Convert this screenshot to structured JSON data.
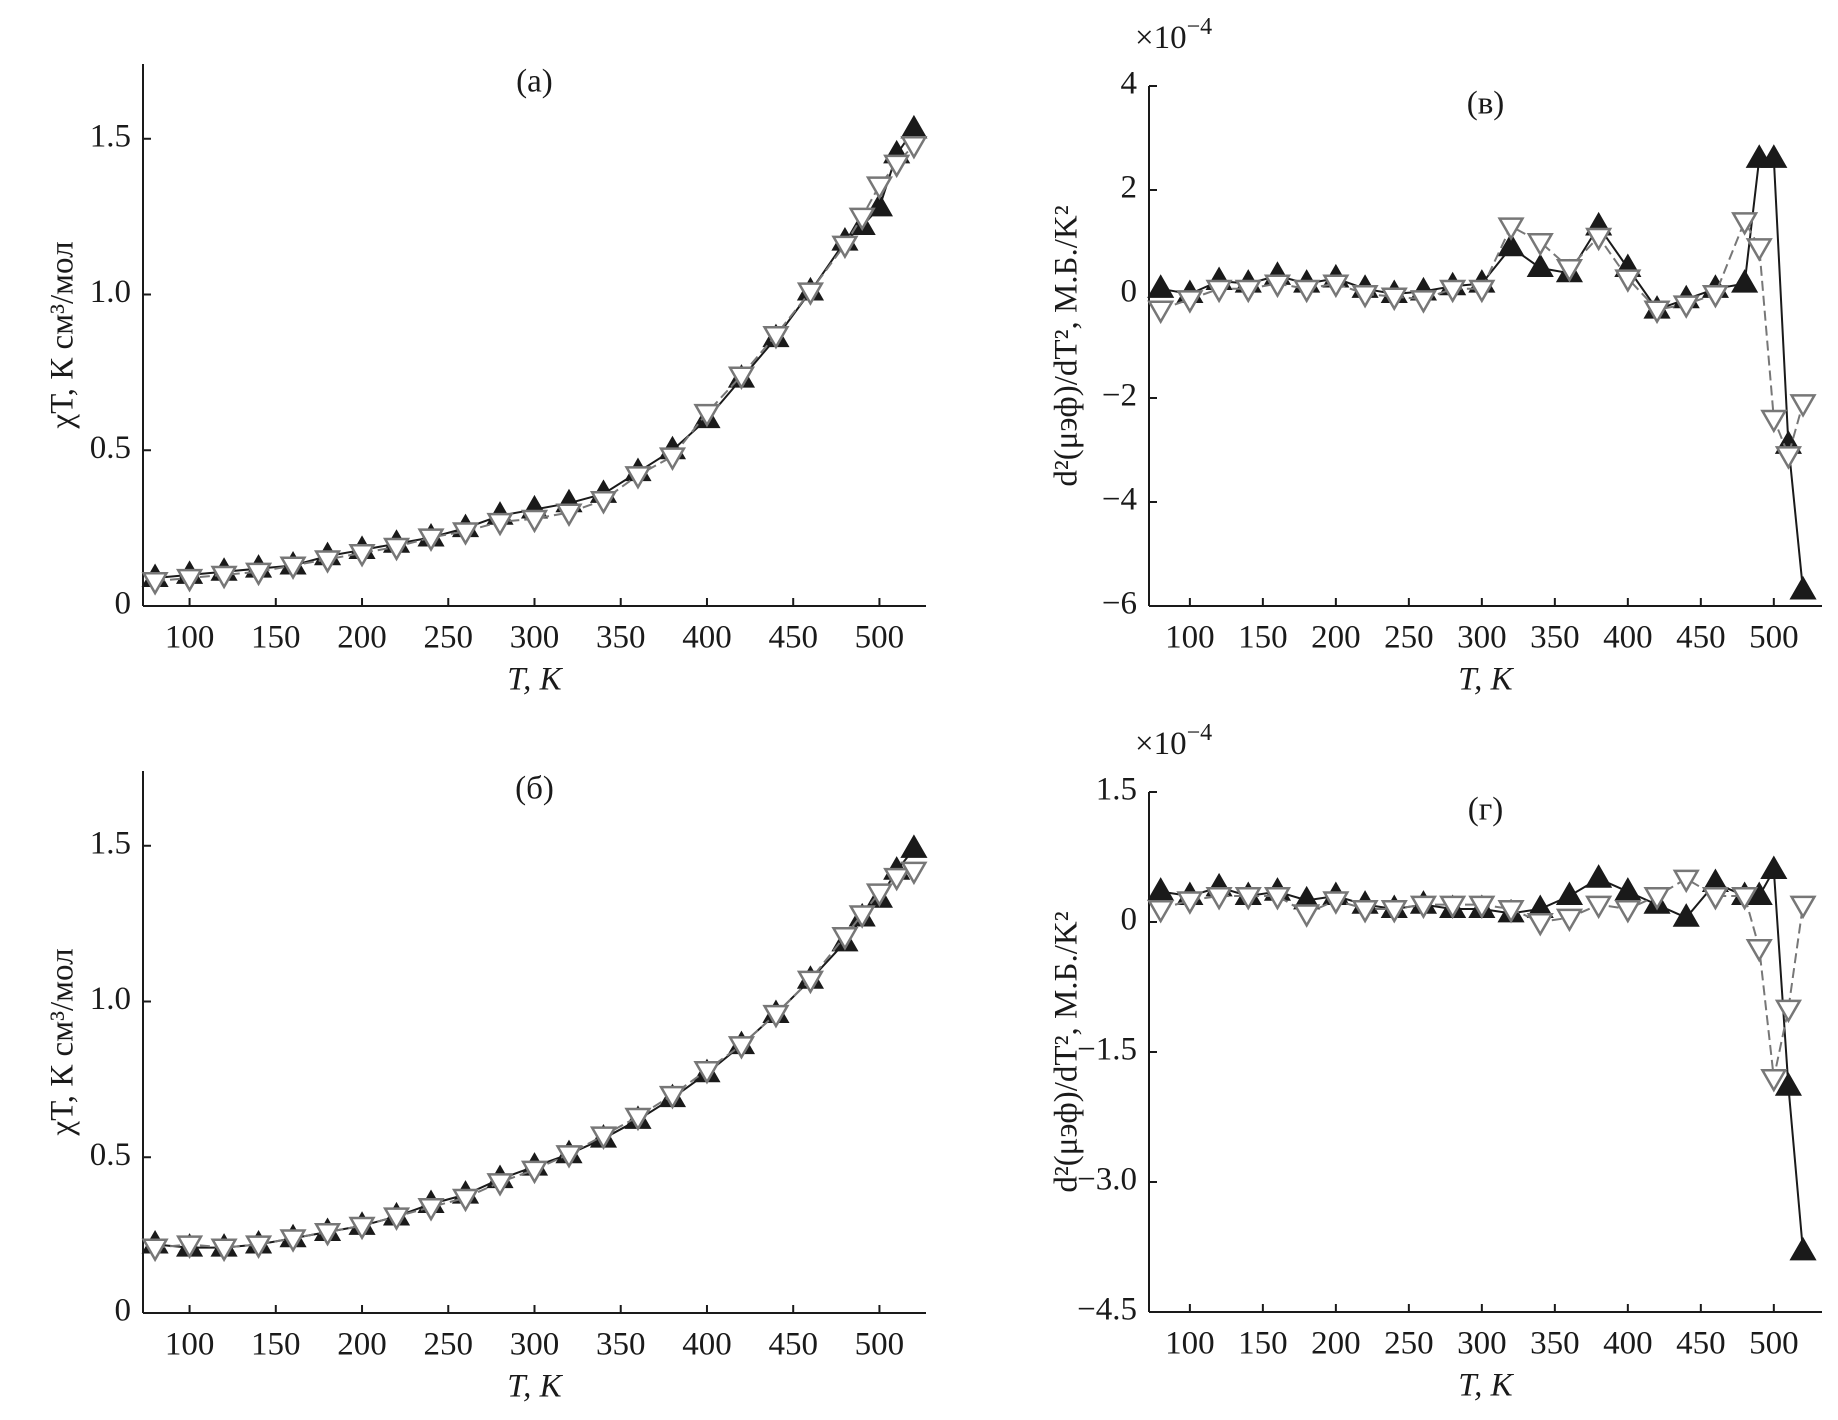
{
  "chart_data": [
    {
      "type": "line",
      "title": "(а)",
      "xlabel": "T, K",
      "ylabel": "χT, К см³/мол",
      "xlim": [
        73,
        527
      ],
      "xticks": [
        100,
        150,
        200,
        250,
        300,
        350,
        400,
        450,
        500
      ],
      "ylim": [
        0,
        1.74
      ],
      "yticks": [
        0,
        0.5,
        {
          "value": 1,
          "label": "1.0"
        },
        1.5
      ],
      "x": [
        80,
        100,
        120,
        140,
        160,
        180,
        200,
        220,
        240,
        260,
        280,
        300,
        320,
        340,
        360,
        380,
        400,
        420,
        440,
        460,
        480,
        490,
        500,
        510,
        520
      ],
      "series": [
        {
          "color": "#1a1a1a",
          "filled": true,
          "marker": "triangle-up",
          "values": [
            0.09,
            0.1,
            0.11,
            0.12,
            0.13,
            0.16,
            0.18,
            0.2,
            0.22,
            0.25,
            0.29,
            0.31,
            0.33,
            0.36,
            0.43,
            0.5,
            0.6,
            0.73,
            0.86,
            1.01,
            1.17,
            1.22,
            1.28,
            1.45,
            1.53
          ]
        },
        {
          "color": "#777777",
          "filled": false,
          "marker": "triangle-down",
          "values": [
            0.08,
            0.09,
            0.1,
            0.11,
            0.13,
            0.15,
            0.17,
            0.19,
            0.22,
            0.24,
            0.27,
            0.28,
            0.3,
            0.34,
            0.42,
            0.48,
            0.62,
            0.74,
            0.87,
            1.01,
            1.16,
            1.25,
            1.35,
            1.42,
            1.48
          ]
        }
      ]
    },
    {
      "type": "line",
      "title": "(в)",
      "xlabel": "T, K",
      "ylabel": "d²(μэф)/dT², М.Б./K²",
      "multiplier": {
        "base": "×10",
        "exponent": "−4"
      },
      "xlim": [
        72,
        533
      ],
      "xticks": [
        100,
        150,
        200,
        250,
        300,
        350,
        400,
        450,
        500
      ],
      "ylim": [
        -6,
        4
      ],
      "yticks": [
        {
          "value": -6,
          "label": "−6"
        },
        {
          "value": -4,
          "label": "−4"
        },
        {
          "value": -2,
          "label": "−2"
        },
        0,
        2,
        4
      ],
      "x": [
        80,
        100,
        120,
        140,
        160,
        180,
        200,
        220,
        240,
        260,
        280,
        300,
        320,
        340,
        360,
        380,
        400,
        420,
        440,
        460,
        480,
        490,
        500,
        510,
        520
      ],
      "series": [
        {
          "color": "#1a1a1a",
          "filled": true,
          "marker": "triangle-up",
          "values": [
            0.1,
            0.0,
            0.25,
            0.2,
            0.35,
            0.2,
            0.3,
            0.1,
            0.0,
            0.05,
            0.15,
            0.2,
            0.9,
            0.5,
            0.4,
            1.3,
            0.5,
            -0.3,
            -0.1,
            0.1,
            0.2,
            2.6,
            2.6,
            -2.9,
            -5.7
          ]
        },
        {
          "color": "#777777",
          "filled": false,
          "marker": "triangle-down",
          "values": [
            -0.3,
            -0.1,
            0.1,
            0.1,
            0.2,
            0.1,
            0.2,
            0.0,
            -0.05,
            -0.1,
            0.1,
            0.1,
            1.3,
            1.0,
            0.5,
            1.1,
            0.3,
            -0.3,
            -0.2,
            0.0,
            1.4,
            0.9,
            -2.4,
            -3.1,
            -2.1
          ]
        }
      ]
    },
    {
      "type": "line",
      "title": "(б)",
      "xlabel": "T, K",
      "ylabel": "χT, К см³/мол",
      "xlim": [
        73,
        527
      ],
      "xticks": [
        100,
        150,
        200,
        250,
        300,
        350,
        400,
        450,
        500
      ],
      "ylim": [
        0,
        1.74
      ],
      "yticks": [
        0,
        0.5,
        {
          "value": 1,
          "label": "1.0"
        },
        1.5
      ],
      "x": [
        80,
        100,
        120,
        140,
        160,
        180,
        200,
        220,
        240,
        260,
        280,
        300,
        320,
        340,
        360,
        380,
        400,
        420,
        440,
        460,
        480,
        490,
        500,
        510,
        520
      ],
      "series": [
        {
          "color": "#1a1a1a",
          "filled": true,
          "marker": "triangle-up",
          "values": [
            0.22,
            0.21,
            0.21,
            0.22,
            0.24,
            0.26,
            0.28,
            0.31,
            0.35,
            0.38,
            0.43,
            0.47,
            0.51,
            0.56,
            0.62,
            0.69,
            0.77,
            0.86,
            0.96,
            1.07,
            1.19,
            1.27,
            1.33,
            1.42,
            1.49
          ]
        },
        {
          "color": "#777777",
          "filled": false,
          "marker": "triangle-down",
          "values": [
            0.21,
            0.22,
            0.21,
            0.22,
            0.24,
            0.26,
            0.28,
            0.31,
            0.34,
            0.37,
            0.42,
            0.46,
            0.51,
            0.57,
            0.63,
            0.7,
            0.78,
            0.86,
            0.96,
            1.07,
            1.21,
            1.28,
            1.35,
            1.4,
            1.42
          ]
        }
      ]
    },
    {
      "type": "line",
      "title": "(г)",
      "xlabel": "T, K",
      "ylabel": "d²(μэф)/dT², М.Б./K²",
      "multiplier": {
        "base": "×10",
        "exponent": "−4"
      },
      "xlim": [
        72,
        533
      ],
      "xticks": [
        100,
        150,
        200,
        250,
        300,
        350,
        400,
        450,
        500
      ],
      "ylim": [
        -4.5,
        1.5
      ],
      "yticks": [
        {
          "value": -4.5,
          "label": "−4.5"
        },
        {
          "value": -3,
          "label": "−3.0"
        },
        {
          "value": -1.5,
          "label": "−1.5"
        },
        0,
        1.5
      ],
      "x": [
        80,
        100,
        120,
        140,
        160,
        180,
        200,
        220,
        240,
        260,
        280,
        300,
        320,
        340,
        360,
        380,
        400,
        420,
        440,
        460,
        480,
        490,
        500,
        510,
        520
      ],
      "series": [
        {
          "color": "#1a1a1a",
          "filled": true,
          "marker": "triangle-up",
          "values": [
            0.35,
            0.3,
            0.4,
            0.3,
            0.35,
            0.25,
            0.3,
            0.2,
            0.15,
            0.2,
            0.15,
            0.15,
            0.1,
            0.15,
            0.3,
            0.5,
            0.35,
            0.2,
            0.05,
            0.45,
            0.3,
            0.3,
            0.6,
            -1.9,
            -3.8
          ]
        },
        {
          "color": "#777777",
          "filled": false,
          "marker": "triangle-down",
          "values": [
            0.15,
            0.25,
            0.3,
            0.3,
            0.3,
            0.1,
            0.25,
            0.15,
            0.15,
            0.2,
            0.2,
            0.2,
            0.15,
            0.0,
            0.05,
            0.2,
            0.15,
            0.3,
            0.5,
            0.3,
            0.3,
            -0.3,
            -1.8,
            -1.0,
            0.2
          ]
        }
      ]
    }
  ]
}
